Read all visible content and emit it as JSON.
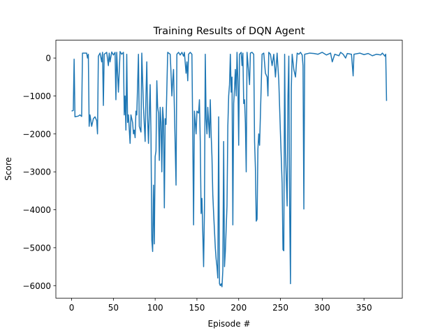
{
  "chart_data": {
    "type": "line",
    "title": "Training Results of DQN Agent",
    "xlabel": "Episode #",
    "ylabel": "Score",
    "color": "#1f77b4",
    "x": [
      0,
      2,
      3,
      4,
      8,
      10,
      12,
      13,
      18,
      19,
      20,
      21,
      22,
      24,
      26,
      28,
      30,
      31,
      32,
      34,
      36,
      37,
      38,
      39,
      42,
      44,
      45,
      46,
      48,
      50,
      52,
      53,
      54,
      56,
      58,
      60,
      62,
      63,
      64,
      65,
      66,
      67,
      68,
      70,
      71,
      73,
      74,
      75,
      76,
      77,
      78,
      80,
      81,
      83,
      84,
      86,
      88,
      89,
      90,
      91,
      92,
      94,
      95,
      96,
      97,
      98,
      99,
      100,
      101,
      102,
      103,
      104,
      105,
      106,
      107,
      108,
      109,
      110,
      111,
      112,
      113,
      115,
      118,
      119,
      120,
      121,
      122,
      125,
      126,
      128,
      130,
      132,
      134,
      135,
      137,
      138,
      139,
      140,
      142,
      144,
      145,
      146,
      147,
      148,
      149,
      150,
      152,
      153,
      154,
      155,
      156,
      158,
      159,
      160,
      161,
      162,
      163,
      164,
      165,
      166,
      167,
      168,
      169,
      170,
      172,
      173,
      174,
      175,
      176,
      177,
      178,
      179,
      180,
      181,
      182,
      183,
      184,
      185,
      186,
      187,
      188,
      189,
      190,
      191,
      192,
      193,
      194,
      195,
      196,
      197,
      198,
      199,
      200,
      201,
      203,
      204,
      205,
      206,
      207,
      208,
      209,
      210,
      212,
      213,
      214,
      216,
      218,
      219,
      220,
      221,
      222,
      223,
      224,
      225,
      226,
      228,
      230,
      232,
      234,
      235,
      236,
      238,
      240,
      242,
      244,
      246,
      248,
      250,
      252,
      253,
      254,
      255,
      256,
      257,
      258,
      259,
      260,
      261,
      262,
      263,
      264,
      266,
      268,
      270,
      272,
      274,
      276,
      277,
      278,
      279,
      285,
      290,
      295,
      300,
      305,
      310,
      312,
      315,
      320,
      322,
      325,
      328,
      330,
      335,
      337,
      338,
      345,
      350,
      355,
      360,
      365,
      370,
      372,
      375,
      376,
      377
    ],
    "values": [
      -1400,
      -1380,
      -30,
      -1550,
      -1530,
      -1500,
      -1540,
      130,
      130,
      0,
      100,
      -1800,
      -1500,
      -1800,
      -1600,
      -1550,
      -1650,
      -2000,
      50,
      130,
      -100,
      150,
      -1250,
      100,
      150,
      -200,
      130,
      -100,
      160,
      80,
      150,
      -1100,
      150,
      -900,
      170,
      100,
      150,
      -1500,
      -1000,
      -1900,
      100,
      -1700,
      -1500,
      -2250,
      -1500,
      -1700,
      -2000,
      -1900,
      -2100,
      -1400,
      -1500,
      100,
      -1800,
      -1950,
      130,
      -1300,
      -2200,
      -1000,
      -100,
      -1600,
      -2250,
      -700,
      -2000,
      -4800,
      -5100,
      -3350,
      -4900,
      -2600,
      -2450,
      -600,
      -1300,
      -1450,
      -2700,
      -1300,
      -1700,
      -3000,
      -1300,
      -1650,
      -3950,
      -1600,
      -1750,
      150,
      100,
      -400,
      -1000,
      -600,
      -300,
      -3350,
      100,
      150,
      80,
      150,
      50,
      150,
      -400,
      -100,
      -600,
      100,
      150,
      100,
      -2000,
      -4400,
      -1400,
      -1700,
      -2000,
      -1400,
      -1450,
      -1100,
      -2200,
      -4100,
      -3700,
      -5500,
      -4000,
      100,
      -1600,
      -2000,
      -1300,
      -1700,
      -2100,
      -1100,
      -2000,
      -2600,
      -3600,
      -4100,
      -5000,
      -5300,
      -5500,
      -5800,
      -1550,
      -5950,
      -6000,
      -5950,
      -6030,
      -5600,
      -2200,
      -5500,
      -5100,
      -4500,
      -3900,
      -1800,
      -1000,
      -700,
      100,
      -900,
      -500,
      -4400,
      -1200,
      -800,
      -300,
      -1000,
      150,
      -600,
      -2300,
      100,
      150,
      -200,
      130,
      -1200,
      -1100,
      -1700,
      -3000,
      150,
      -400,
      -700,
      130,
      150,
      100,
      -2200,
      -2900,
      -4300,
      -4250,
      -2400,
      -2000,
      -2300,
      -1500,
      100,
      130,
      -400,
      -500,
      -1000,
      150,
      100,
      -200,
      100,
      -500,
      130,
      -600,
      -2000,
      -3300,
      -5050,
      -5080,
      100,
      -2500,
      -3200,
      -3900,
      -1000,
      50,
      -4000,
      -5950,
      -800,
      100,
      -300,
      -500,
      130,
      100,
      150,
      80,
      -200,
      -3980,
      100,
      130,
      120,
      100,
      150,
      80,
      130,
      -100,
      100,
      60,
      150,
      100,
      0,
      120,
      100,
      -470,
      100,
      130,
      90,
      120,
      60,
      100,
      80,
      130,
      50,
      100,
      -1130
    ],
    "xlim": [
      -18.85,
      395.85
    ],
    "xticks": [
      0,
      50,
      100,
      150,
      200,
      250,
      300,
      350
    ],
    "ylim": [
      -6330,
      470
    ],
    "yticks": [
      {
        "value": -6000,
        "label": "−6000"
      },
      {
        "value": -5000,
        "label": "−5000"
      },
      {
        "value": -4000,
        "label": "−4000"
      },
      {
        "value": -3000,
        "label": "−3000"
      },
      {
        "value": -2000,
        "label": "−2000"
      },
      {
        "value": -1000,
        "label": "−1000"
      },
      0
    ]
  }
}
